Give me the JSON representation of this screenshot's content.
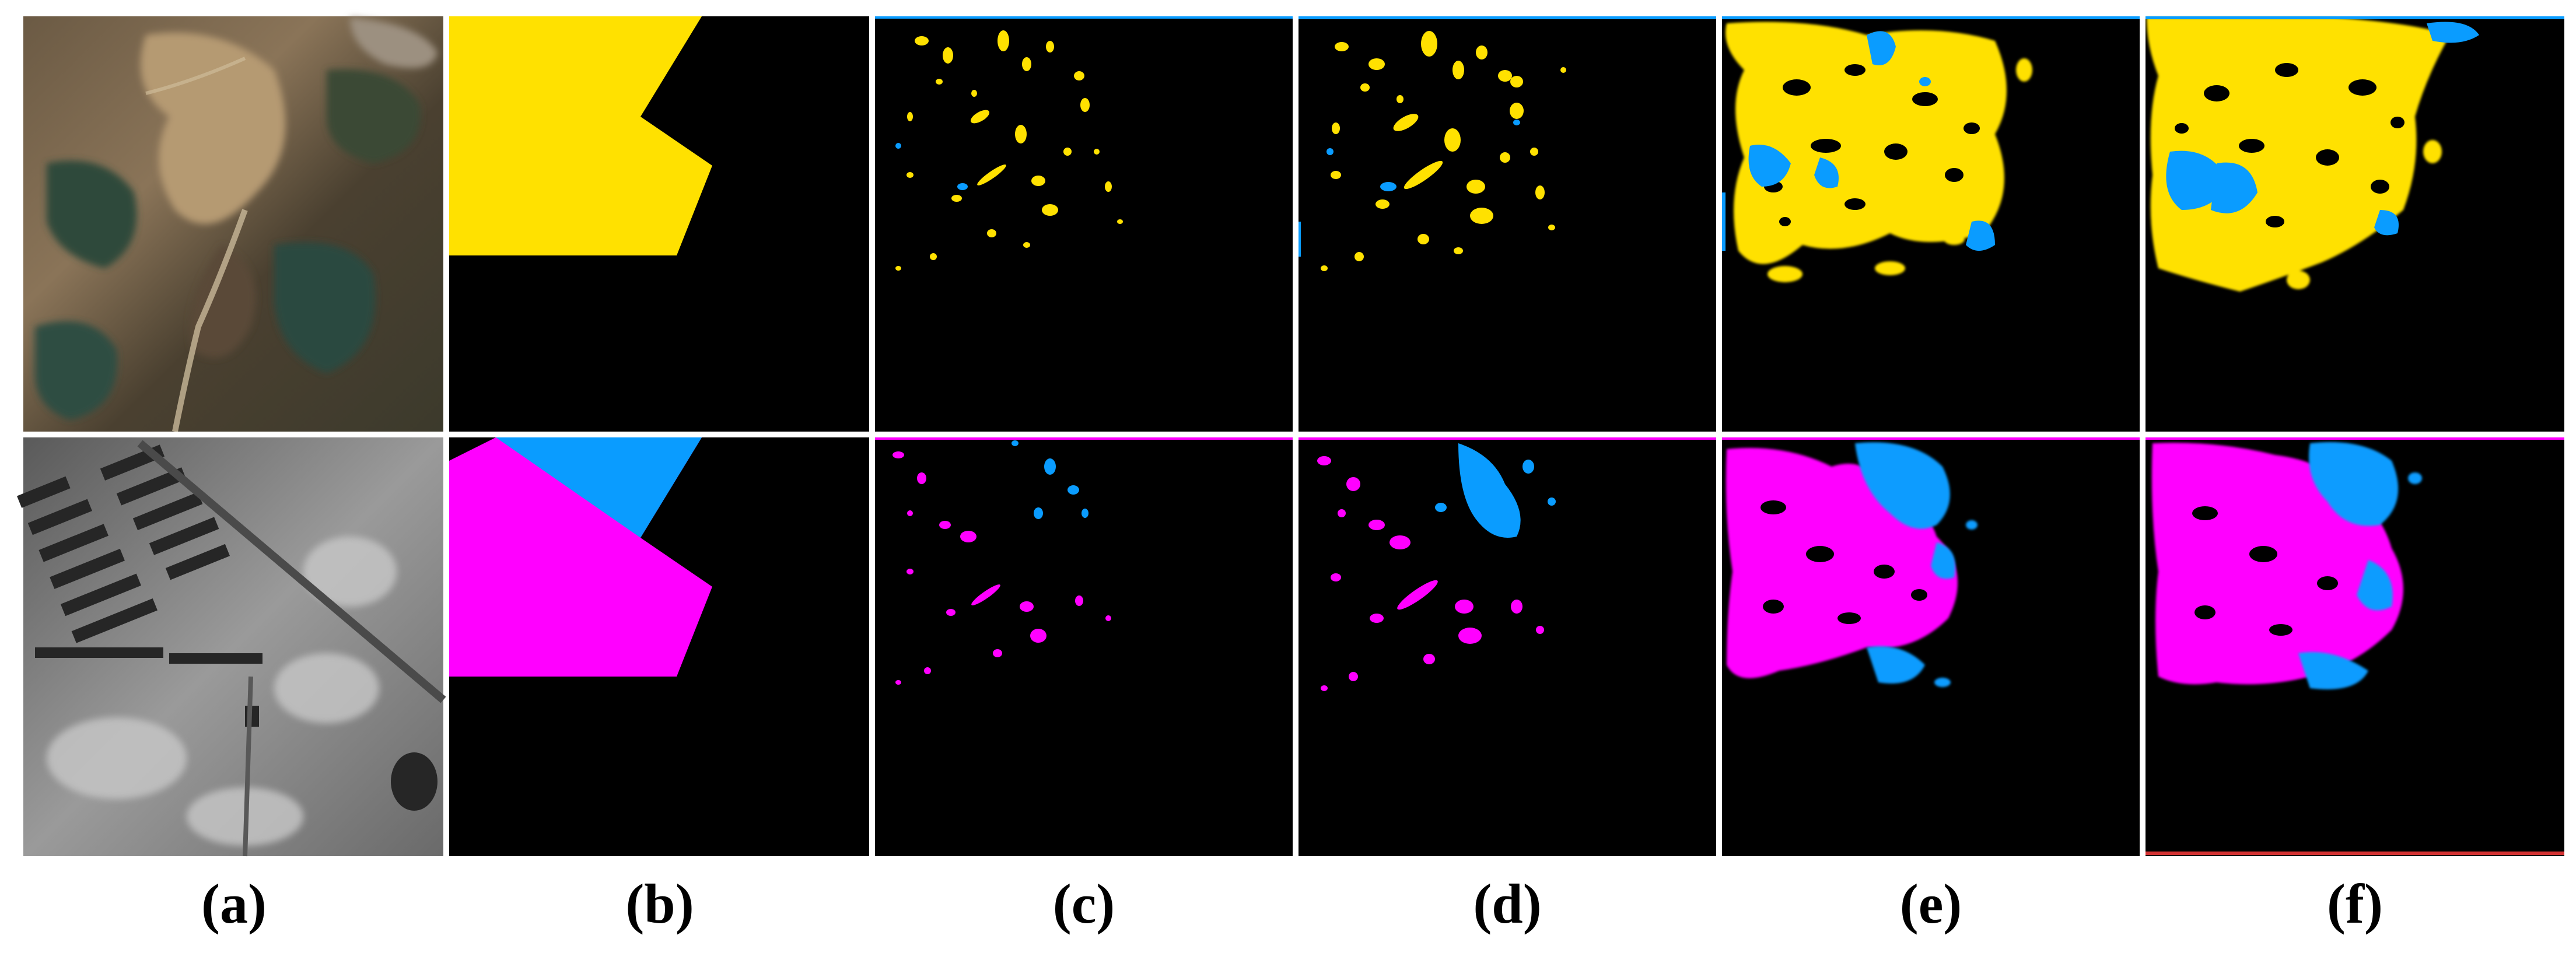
{
  "figure": {
    "panel_labels": [
      "(a)",
      "(b)",
      "(c)",
      "(d)",
      "(e)",
      "(f)"
    ],
    "rows": [
      {
        "image": "color satellite image",
        "class_color": "#ffe100",
        "secondary_color": "#0a9cff"
      },
      {
        "image": "grayscale satellite image",
        "class_color": "#ff00ff",
        "secondary_color": "#0a9cff"
      }
    ],
    "colors": {
      "background": "#000000",
      "yellow": "#ffe100",
      "magenta": "#ff00ff",
      "blue": "#0a9cff",
      "separator": "#ffffff"
    }
  }
}
